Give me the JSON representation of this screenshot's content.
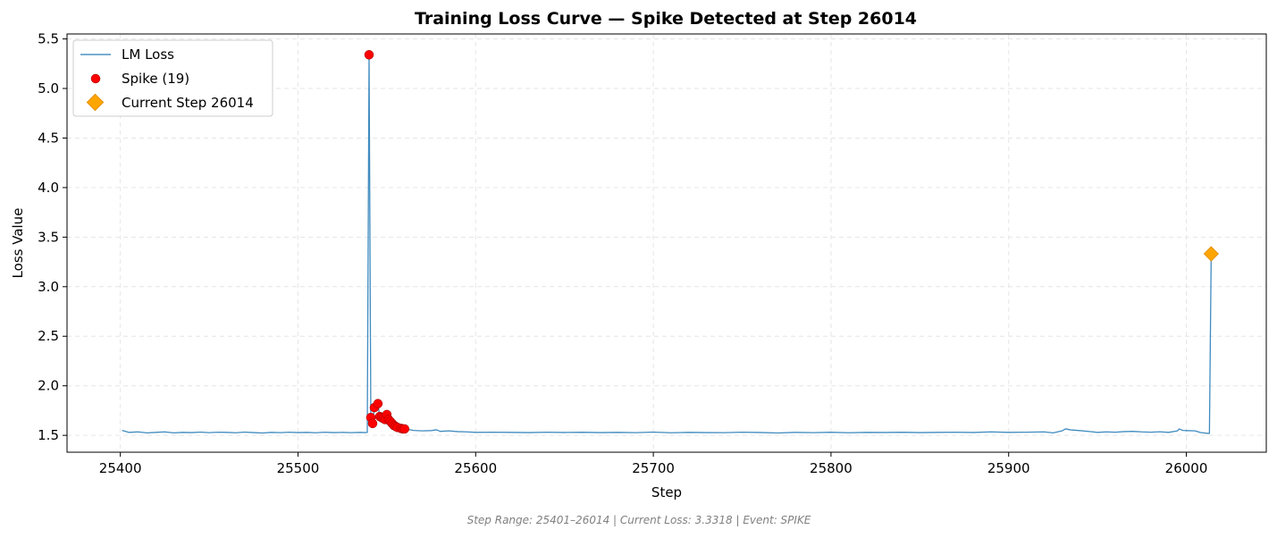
{
  "chart_data": {
    "type": "line",
    "title": "Training Loss Curve — Spike Detected at Step 26014",
    "xlabel": "Step",
    "ylabel": "Loss Value",
    "xlim": [
      25370,
      26045
    ],
    "ylim": [
      1.33,
      5.55
    ],
    "x_ticks": [
      25400,
      25500,
      25600,
      25700,
      25800,
      25900,
      26000
    ],
    "y_ticks": [
      1.5,
      2.0,
      2.5,
      3.0,
      3.5,
      4.0,
      4.5,
      5.0,
      5.5
    ],
    "y_tick_labels": [
      "1.5",
      "2.0",
      "2.5",
      "3.0",
      "3.5",
      "4.0",
      "4.5",
      "5.0",
      "5.5"
    ],
    "grid": true,
    "legend_position": "top-left",
    "series": [
      {
        "name": "LM Loss",
        "kind": "line",
        "color": "#1f77b4",
        "points": [
          [
            25401,
            1.55
          ],
          [
            25405,
            1.53
          ],
          [
            25410,
            1.535
          ],
          [
            25415,
            1.525
          ],
          [
            25420,
            1.53
          ],
          [
            25425,
            1.535
          ],
          [
            25430,
            1.525
          ],
          [
            25435,
            1.53
          ],
          [
            25440,
            1.528
          ],
          [
            25445,
            1.533
          ],
          [
            25450,
            1.527
          ],
          [
            25455,
            1.532
          ],
          [
            25460,
            1.53
          ],
          [
            25465,
            1.526
          ],
          [
            25470,
            1.533
          ],
          [
            25475,
            1.528
          ],
          [
            25480,
            1.524
          ],
          [
            25485,
            1.53
          ],
          [
            25490,
            1.527
          ],
          [
            25495,
            1.532
          ],
          [
            25500,
            1.528
          ],
          [
            25505,
            1.53
          ],
          [
            25510,
            1.526
          ],
          [
            25515,
            1.532
          ],
          [
            25520,
            1.528
          ],
          [
            25525,
            1.53
          ],
          [
            25530,
            1.527
          ],
          [
            25535,
            1.53
          ],
          [
            25538,
            1.528
          ],
          [
            25539,
            1.53
          ],
          [
            25540,
            5.34
          ],
          [
            25541,
            1.68
          ],
          [
            25542,
            1.62
          ],
          [
            25543,
            1.78
          ],
          [
            25545,
            1.82
          ],
          [
            25546,
            1.69
          ],
          [
            25547,
            1.68
          ],
          [
            25548,
            1.67
          ],
          [
            25549,
            1.66
          ],
          [
            25550,
            1.71
          ],
          [
            25551,
            1.66
          ],
          [
            25552,
            1.64
          ],
          [
            25553,
            1.62
          ],
          [
            25554,
            1.6
          ],
          [
            25555,
            1.59
          ],
          [
            25556,
            1.58
          ],
          [
            25558,
            1.57
          ],
          [
            25559,
            1.565
          ],
          [
            25560,
            1.565
          ],
          [
            25562,
            1.56
          ],
          [
            25565,
            1.55
          ],
          [
            25570,
            1.545
          ],
          [
            25575,
            1.548
          ],
          [
            25578,
            1.556
          ],
          [
            25580,
            1.54
          ],
          [
            25585,
            1.545
          ],
          [
            25590,
            1.538
          ],
          [
            25595,
            1.535
          ],
          [
            25600,
            1.53
          ],
          [
            25610,
            1.532
          ],
          [
            25620,
            1.53
          ],
          [
            25630,
            1.528
          ],
          [
            25640,
            1.532
          ],
          [
            25650,
            1.529
          ],
          [
            25660,
            1.531
          ],
          [
            25670,
            1.528
          ],
          [
            25680,
            1.53
          ],
          [
            25690,
            1.527
          ],
          [
            25700,
            1.533
          ],
          [
            25710,
            1.526
          ],
          [
            25720,
            1.53
          ],
          [
            25730,
            1.528
          ],
          [
            25740,
            1.527
          ],
          [
            25750,
            1.532
          ],
          [
            25760,
            1.529
          ],
          [
            25770,
            1.524
          ],
          [
            25780,
            1.53
          ],
          [
            25790,
            1.527
          ],
          [
            25800,
            1.531
          ],
          [
            25810,
            1.526
          ],
          [
            25820,
            1.53
          ],
          [
            25830,
            1.529
          ],
          [
            25840,
            1.531
          ],
          [
            25850,
            1.528
          ],
          [
            25860,
            1.53
          ],
          [
            25870,
            1.532
          ],
          [
            25880,
            1.529
          ],
          [
            25890,
            1.535
          ],
          [
            25900,
            1.53
          ],
          [
            25910,
            1.532
          ],
          [
            25920,
            1.535
          ],
          [
            25925,
            1.525
          ],
          [
            25930,
            1.545
          ],
          [
            25932,
            1.565
          ],
          [
            25935,
            1.555
          ],
          [
            25940,
            1.548
          ],
          [
            25945,
            1.54
          ],
          [
            25950,
            1.53
          ],
          [
            25955,
            1.535
          ],
          [
            25960,
            1.532
          ],
          [
            25965,
            1.538
          ],
          [
            25970,
            1.54
          ],
          [
            25975,
            1.535
          ],
          [
            25980,
            1.532
          ],
          [
            25985,
            1.536
          ],
          [
            25990,
            1.53
          ],
          [
            25995,
            1.545
          ],
          [
            25996,
            1.565
          ],
          [
            25998,
            1.55
          ],
          [
            26000,
            1.548
          ],
          [
            26005,
            1.545
          ],
          [
            26008,
            1.528
          ],
          [
            26012,
            1.52
          ],
          [
            26013,
            1.52
          ],
          [
            26014,
            3.3318
          ]
        ]
      },
      {
        "name": "Spike (19)",
        "kind": "scatter",
        "color": "#ff0000",
        "points": [
          [
            25540,
            5.34
          ],
          [
            25541,
            1.68
          ],
          [
            25542,
            1.62
          ],
          [
            25543,
            1.78
          ],
          [
            25545,
            1.82
          ],
          [
            25546,
            1.69
          ],
          [
            25547,
            1.68
          ],
          [
            25548,
            1.67
          ],
          [
            25549,
            1.66
          ],
          [
            25550,
            1.71
          ],
          [
            25551,
            1.66
          ],
          [
            25552,
            1.64
          ],
          [
            25553,
            1.62
          ],
          [
            25554,
            1.6
          ],
          [
            25555,
            1.59
          ],
          [
            25556,
            1.58
          ],
          [
            25558,
            1.57
          ],
          [
            25559,
            1.565
          ],
          [
            25560,
            1.565
          ]
        ]
      },
      {
        "name": "Current Step 26014",
        "kind": "marker",
        "color": "#ffa500",
        "points": [
          [
            26014,
            3.3318
          ]
        ]
      }
    ],
    "footer": "Step Range: 25401–26014 | Current Loss: 3.3318 | Event: SPIKE"
  }
}
